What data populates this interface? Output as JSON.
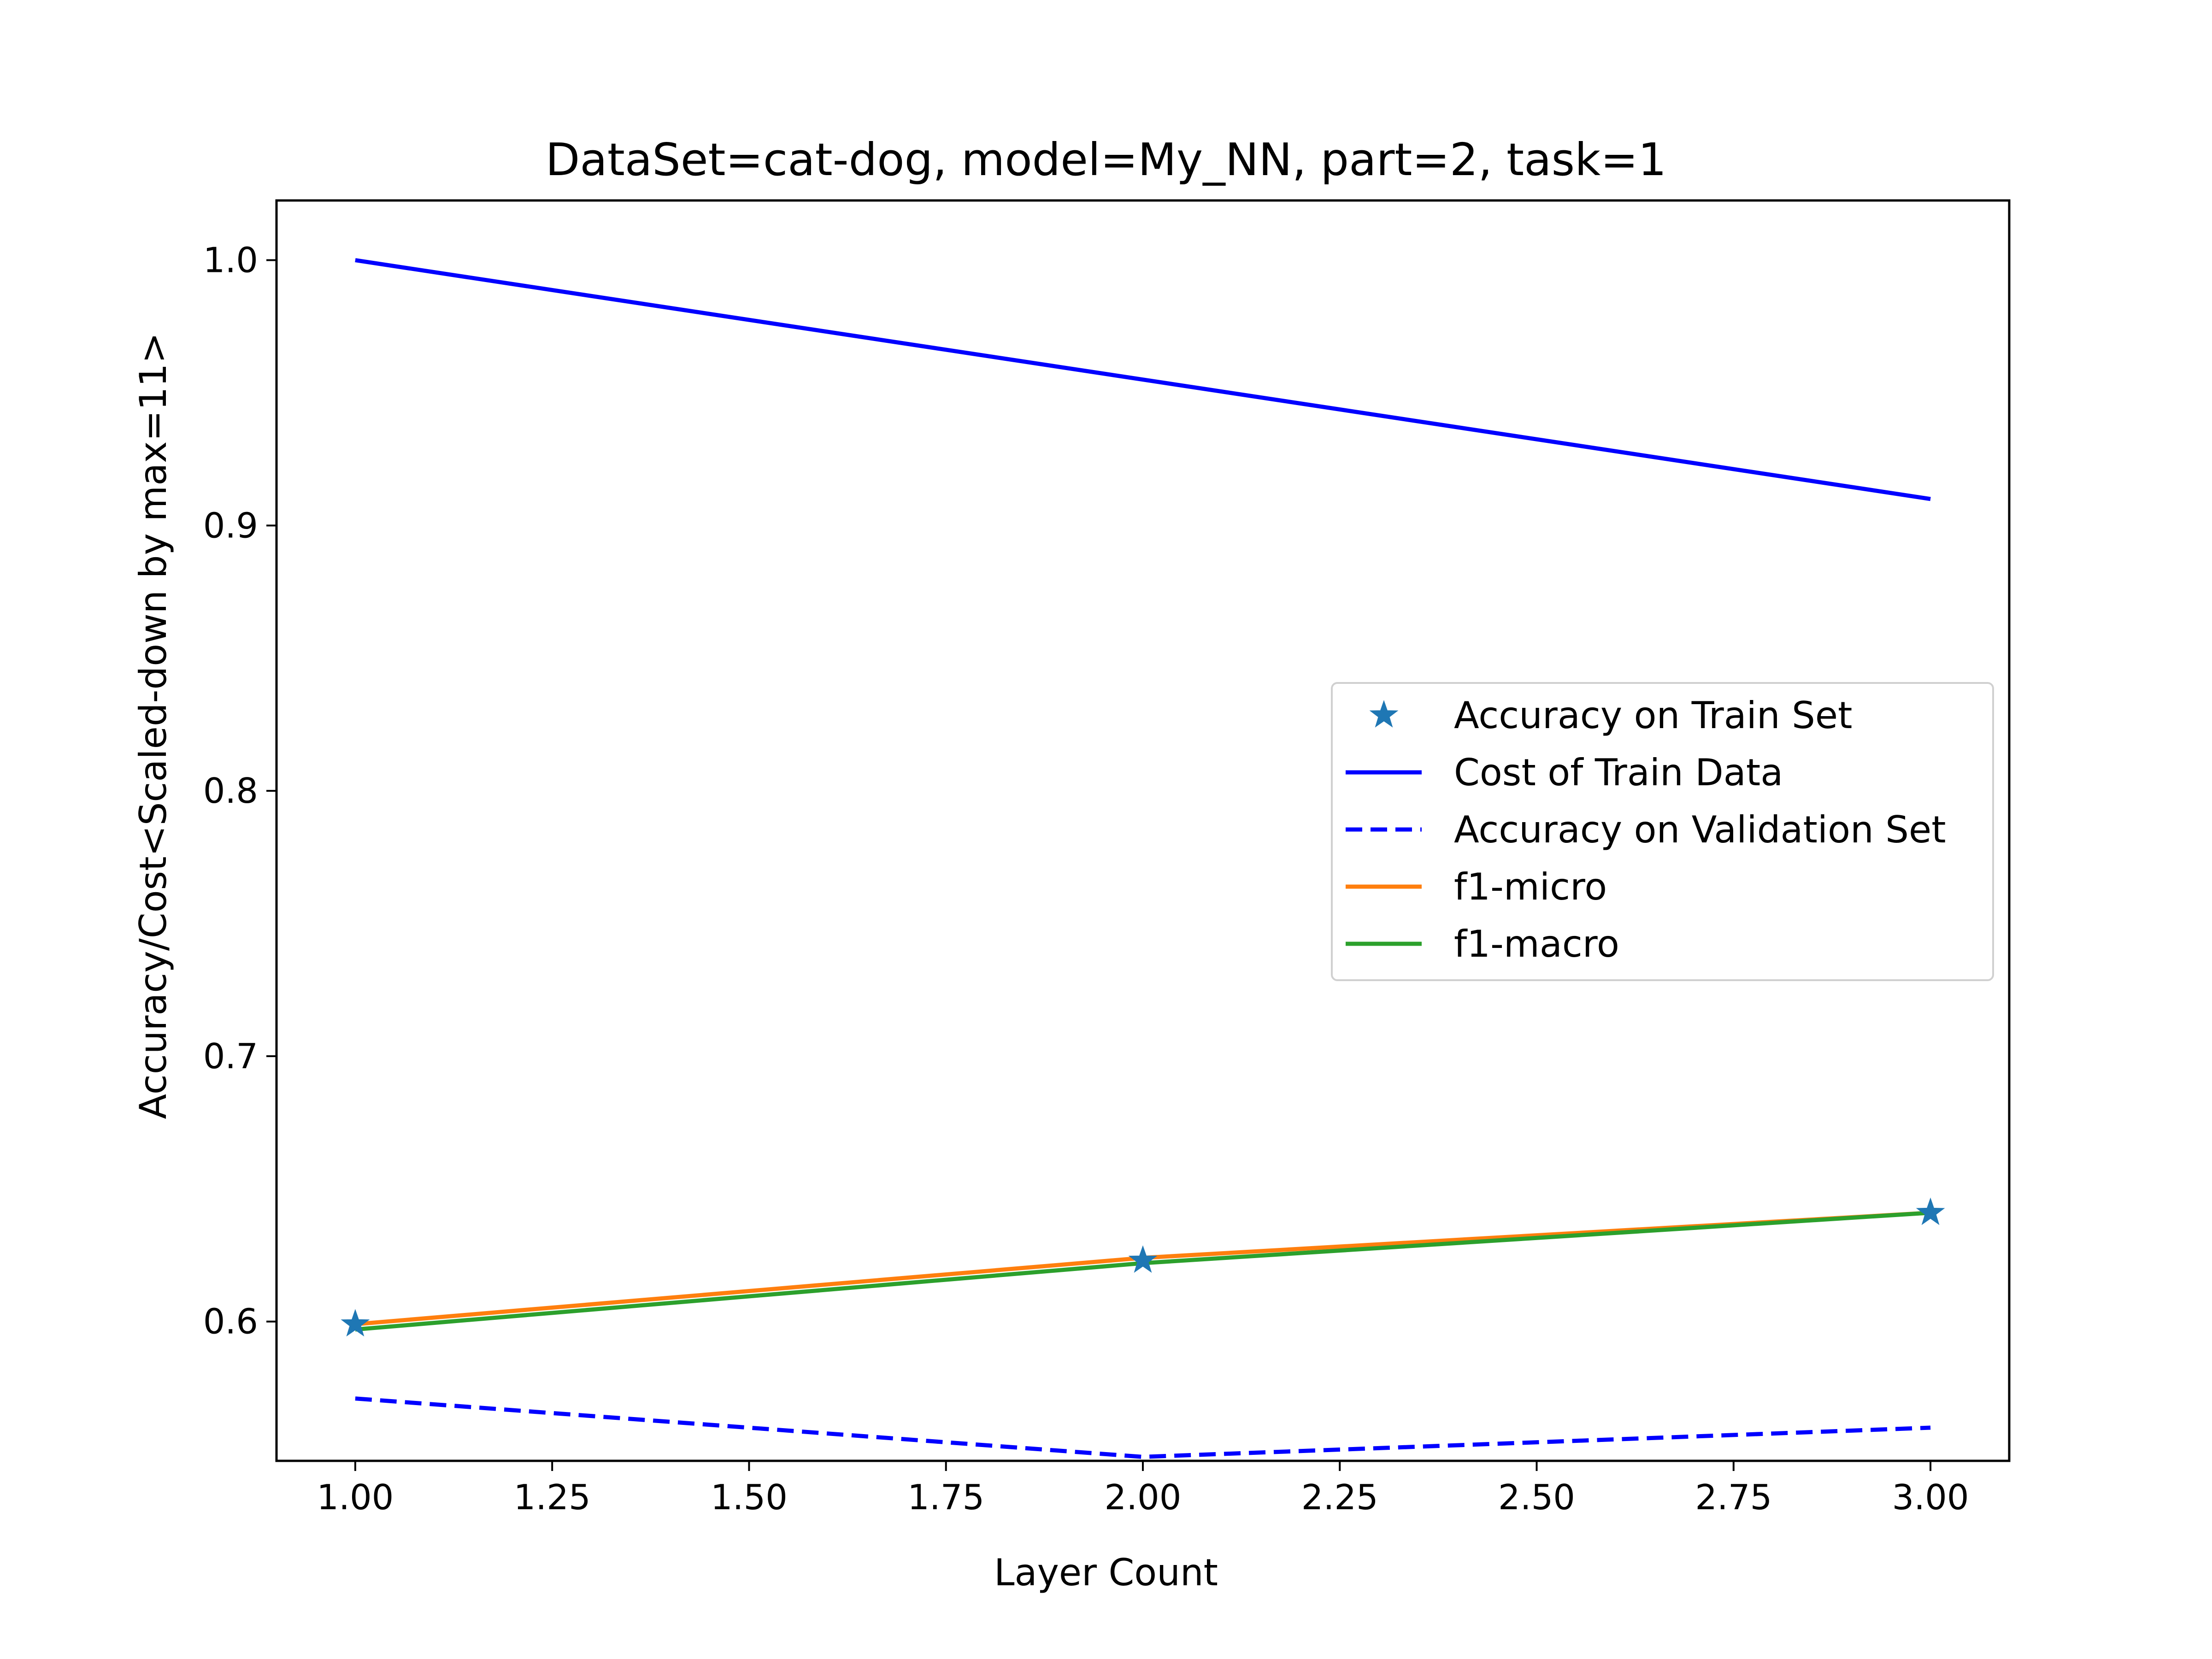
{
  "chart_data": {
    "type": "line",
    "title": "DataSet=cat-dog, model=My_NN, part=2, task=1",
    "xlabel": "Layer Count",
    "ylabel": "Accuracy/Cost<Scaled-down by max=11>",
    "x": [
      1.0,
      2.0,
      3.0
    ],
    "xlim": [
      0.9,
      3.1
    ],
    "ylim": [
      0.5475,
      1.0225
    ],
    "xticks": [
      1.0,
      1.25,
      1.5,
      1.75,
      2.0,
      2.25,
      2.5,
      2.75,
      3.0
    ],
    "xtick_labels": [
      "1.00",
      "1.25",
      "1.50",
      "1.75",
      "2.00",
      "2.25",
      "2.50",
      "2.75",
      "3.00"
    ],
    "yticks": [
      0.6,
      0.7,
      0.8,
      0.9,
      1.0
    ],
    "ytick_labels": [
      "0.6",
      "0.7",
      "0.8",
      "0.9",
      "1.0"
    ],
    "grid": false,
    "legend_position": "center-right",
    "series": [
      {
        "name": "Accuracy on Train Set",
        "values": [
          0.599,
          0.623,
          0.641
        ],
        "color": "#1f77b4",
        "style": "star-marker"
      },
      {
        "name": "Cost of Train Data",
        "values": [
          1.0,
          0.955,
          0.91
        ],
        "color": "#0000ff",
        "style": "solid"
      },
      {
        "name": "Accuracy on Validation Set",
        "values": [
          0.571,
          0.549,
          0.56
        ],
        "color": "#0000ff",
        "style": "dashed"
      },
      {
        "name": "f1-micro",
        "values": [
          0.599,
          0.624,
          0.641
        ],
        "color": "#ff7f0e",
        "style": "solid"
      },
      {
        "name": "f1-macro",
        "values": [
          0.597,
          0.622,
          0.641
        ],
        "color": "#2ca02c",
        "style": "solid"
      }
    ]
  }
}
